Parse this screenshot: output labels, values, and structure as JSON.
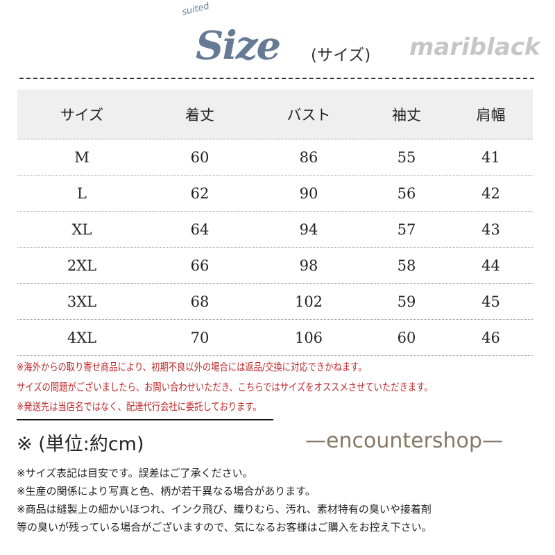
{
  "title": {
    "logo_small": "suited",
    "logo": "Size",
    "subtitle": "(サイズ)"
  },
  "table": {
    "headers": [
      "サイズ",
      "着丈",
      "バスト",
      "袖丈",
      "肩幅"
    ],
    "rows": [
      [
        "M",
        "60",
        "86",
        "55",
        "41"
      ],
      [
        "L",
        "62",
        "90",
        "56",
        "42"
      ],
      [
        "XL",
        "64",
        "94",
        "57",
        "43"
      ],
      [
        "2XL",
        "66",
        "98",
        "58",
        "44"
      ],
      [
        "3XL",
        "68",
        "102",
        "59",
        "45"
      ],
      [
        "4XL",
        "70",
        "106",
        "60",
        "46"
      ]
    ]
  },
  "watermarks": {
    "shop": "—encountershop—",
    "mari": "mariblack"
  },
  "notes_red": [
    "※海外からの取り寄せ商品により、初期不良以外の場合には返品/交換に対応できかねます。",
    "サイズの問題がございましたら、お問い合わせいただき、こちらではサイズをオススメさせていただきます。",
    "※発送先は当店名ではなく、配達代行会社に委託しております。"
  ],
  "unit": "※ (単位:約cm)",
  "notes": [
    "※サイズ表記は目安です。誤差はご了承ください。",
    "※生産の関係により写真と色、柄が若干異なる場合があります。",
    "※商品は縫製上の細かいほつれ、インク飛び、織りむら、汚れ、素材特有の臭いや接着剤",
    "等の臭いが残っている場合がございますので、気になるお客様はご購入をお控え下さい。"
  ]
}
